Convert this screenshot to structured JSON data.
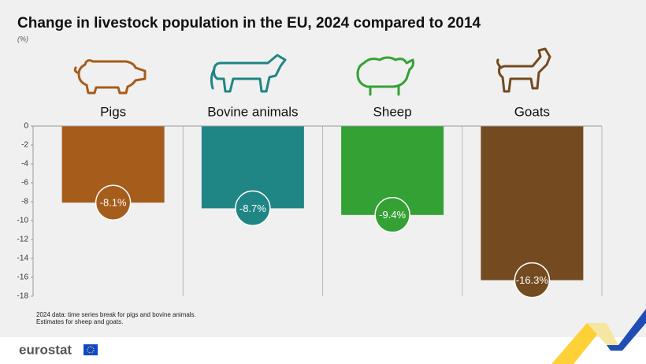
{
  "chart_data": {
    "type": "bar",
    "title": "Change in livestock population in the EU, 2024 compared to 2014",
    "subtitle": "(%)",
    "categories": [
      "Pigs",
      "Bovine animals",
      "Sheep",
      "Goats"
    ],
    "values": [
      -8.1,
      -8.7,
      -9.4,
      -16.3
    ],
    "value_labels": [
      "-8.1%",
      "-8.7%",
      "-9.4%",
      "-16.3%"
    ],
    "colors": [
      "#a65c1b",
      "#1f8585",
      "#33a133",
      "#744a20"
    ],
    "ylim": [
      0,
      -18
    ],
    "yticks": [
      0,
      -2,
      -4,
      -6,
      -8,
      -10,
      -12,
      -14,
      -16,
      -18
    ],
    "notes": [
      "2024 data: time series break for pigs and bovine animals.",
      "Estimates for sheep and goats."
    ],
    "source": "eurostat"
  }
}
